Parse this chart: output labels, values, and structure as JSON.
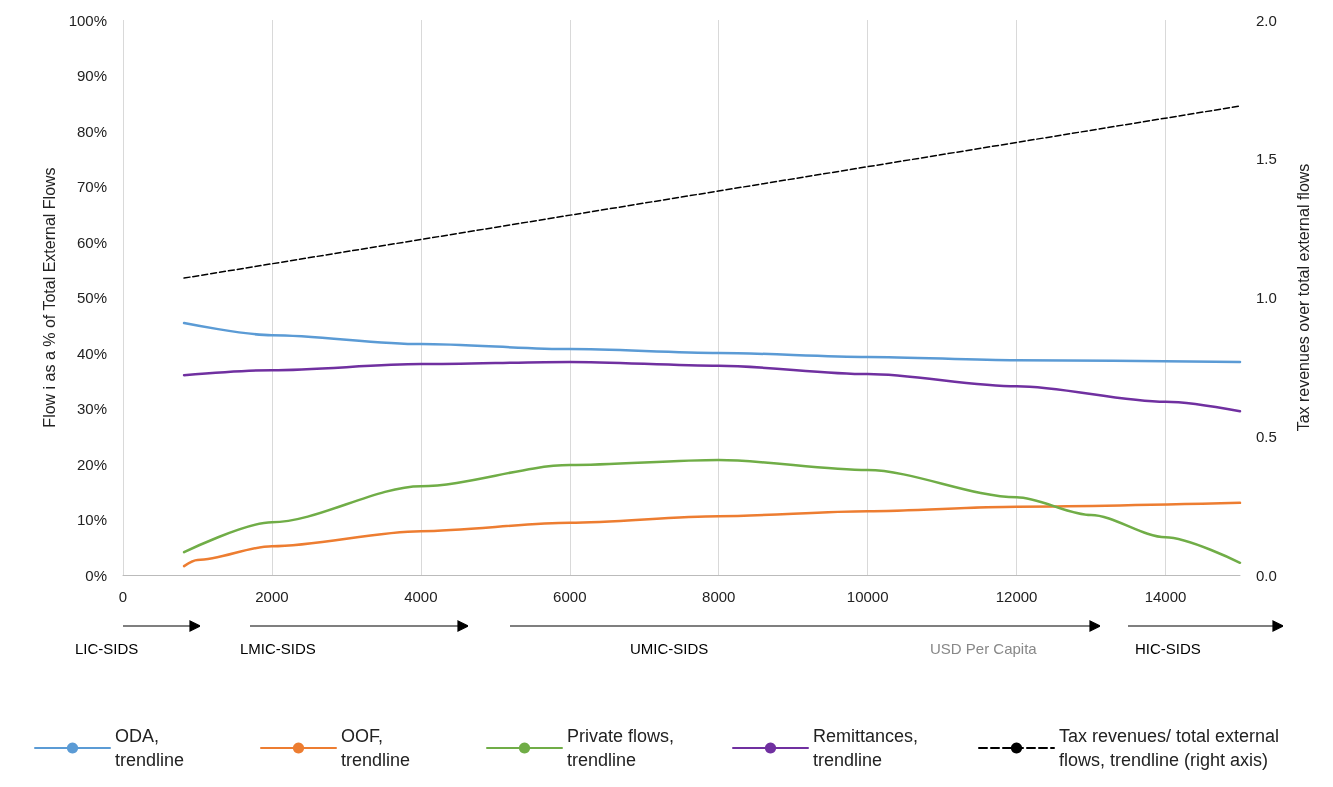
{
  "chart_data": {
    "type": "line",
    "xlabel": null,
    "ylabel": "Flow i as a % of Total External Flows",
    "y2label": "Tax revenues over total external flows",
    "xlim": [
      0,
      15000
    ],
    "xticks": [
      0,
      2000,
      4000,
      6000,
      8000,
      10000,
      12000,
      14000
    ],
    "ylim": [
      0,
      100
    ],
    "yticks": [
      {
        "value": 0,
        "label": "0%"
      },
      {
        "value": 10,
        "label": "10%"
      },
      {
        "value": 20,
        "label": "20%"
      },
      {
        "value": 30,
        "label": "30%"
      },
      {
        "value": 40,
        "label": "40%"
      },
      {
        "value": 50,
        "label": "50%"
      },
      {
        "value": 60,
        "label": "60%"
      },
      {
        "value": 70,
        "label": "70%"
      },
      {
        "value": 80,
        "label": "80%"
      },
      {
        "value": 90,
        "label": "90%"
      },
      {
        "value": 100,
        "label": "100%"
      }
    ],
    "y2lim": [
      0,
      2
    ],
    "y2ticks": [
      {
        "value": 0,
        "label": "0.0"
      },
      0.5,
      {
        "value": 1,
        "label": "1.0"
      },
      1.5,
      {
        "value": 2,
        "label": "2.0"
      }
    ],
    "grid": "x",
    "legend": "bottom",
    "marker": "none",
    "series": [
      {
        "name": "ODA, trendline",
        "color": "#5b9bd5",
        "x": [
          820,
          2000,
          4000,
          6000,
          8000,
          10000,
          12000,
          15000
        ],
        "values": [
          45.4,
          43.2,
          41.6,
          40.7,
          40,
          39.3,
          38.7,
          38.4
        ]
      },
      {
        "name": "OOF, trendline",
        "color": "#ed7d31",
        "x": [
          820,
          1000,
          2000,
          4000,
          6000,
          8000,
          10000,
          12000,
          15000
        ],
        "values": [
          1.6,
          2.7,
          5.2,
          7.9,
          9.4,
          10.6,
          11.5,
          12.3,
          13
        ]
      },
      {
        "name": "Private flows, trendline",
        "color": "#70ad47",
        "x": [
          820,
          2000,
          4000,
          6000,
          8000,
          10000,
          12000,
          13000,
          14000,
          15000
        ],
        "values": [
          4.1,
          9.5,
          16,
          19.8,
          20.7,
          18.9,
          14,
          10.8,
          6.8,
          2.2
        ]
      },
      {
        "name": "Remittances, trendline",
        "color": "#7030a0",
        "x": [
          820,
          2000,
          4000,
          6000,
          8000,
          10000,
          12000,
          14000,
          15000
        ],
        "values": [
          36,
          36.9,
          38,
          38.4,
          37.7,
          36.2,
          34,
          31.2,
          29.5
        ]
      },
      {
        "name": "Tax revenues/ total external flows, trendline (right axis)",
        "color": "#000000",
        "axis": "y2",
        "line_style": "dashed",
        "x": [
          820,
          15000
        ],
        "values": [
          1.07,
          1.69
        ]
      }
    ],
    "annotations": [
      "LIC-SIDS",
      "LMIC-SIDS",
      "UMIC-SIDS",
      "USD Per Capita",
      "HIC-SIDS"
    ]
  }
}
